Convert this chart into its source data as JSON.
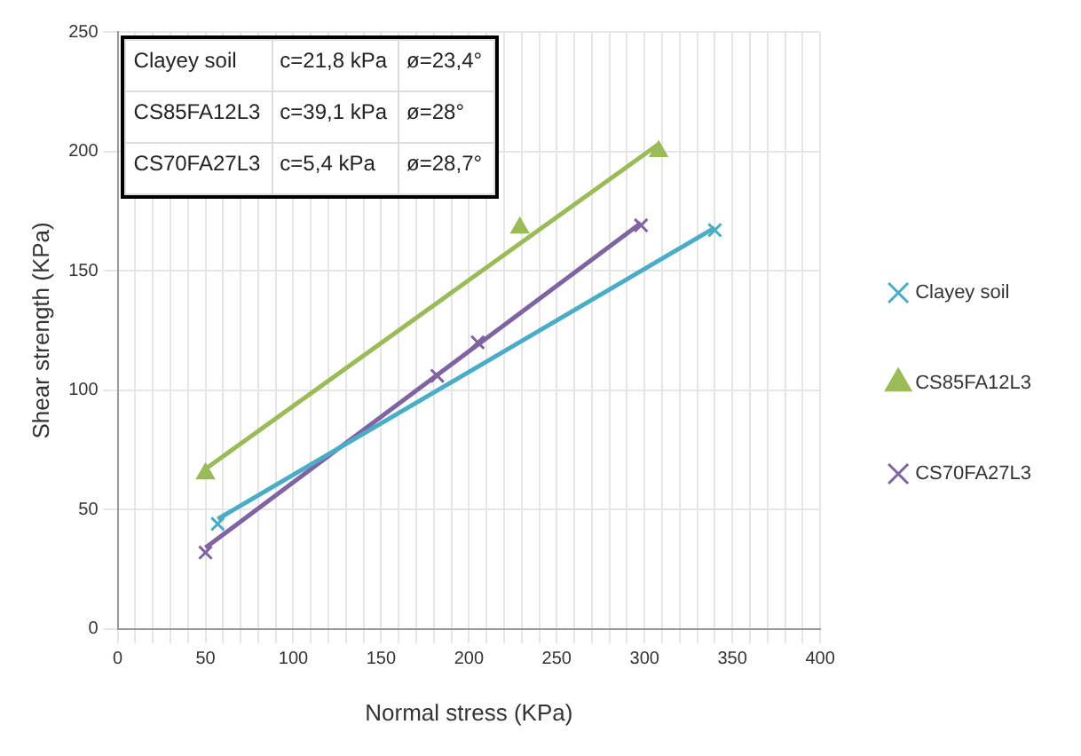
{
  "chart_data": {
    "type": "scatter",
    "xlabel": "Normal stress (KPa)",
    "ylabel": "Shear strength (KPa)",
    "series": [
      {
        "name": "Clayey soil",
        "color": "#4bacc6",
        "marker": "cross",
        "x": [
          57,
          340
        ],
        "values": [
          44,
          167
        ]
      },
      {
        "name": "CS85FA12L3",
        "color": "#9bbb59",
        "marker": "triangle",
        "x": [
          50,
          229,
          308
        ],
        "values": [
          65,
          168,
          200
        ]
      },
      {
        "name": "CS70FA27L3",
        "color": "#8064a2",
        "marker": "cross",
        "x": [
          50,
          182,
          205,
          298
        ],
        "values": [
          32,
          106,
          120,
          169
        ]
      },
      {
        "type": "line",
        "color": "#4bacc6",
        "marker": "none",
        "x": [
          57,
          340
        ],
        "values": [
          46,
          168
        ]
      },
      {
        "type": "line",
        "color": "#9bbb59",
        "marker": "none",
        "x": [
          50,
          308
        ],
        "values": [
          67,
          203
        ]
      },
      {
        "type": "line",
        "color": "#8064a2",
        "marker": "none",
        "x": [
          50,
          298
        ],
        "values": [
          34,
          170
        ]
      }
    ],
    "annotations": [
      "Clayey soil",
      "c=21,8 kPa",
      "ø=23,4°",
      "CS85FA12L3",
      "c=39,1 kPa",
      "ø=28°",
      "CS70FA27L3",
      "c=5,4 kPa",
      "ø=28,7°"
    ],
    "xlim": [
      0,
      400
    ],
    "ylim": [
      0,
      250
    ],
    "xticks": [
      0,
      {
        "value": 10,
        "label": null
      },
      {
        "value": 20,
        "label": null
      },
      {
        "value": 30,
        "label": null
      },
      {
        "value": 40,
        "label": null
      },
      50,
      {
        "value": 60,
        "label": null
      },
      {
        "value": 70,
        "label": null
      },
      {
        "value": 80,
        "label": null
      },
      {
        "value": 90,
        "label": null
      },
      100,
      {
        "value": 110,
        "label": null
      },
      {
        "value": 120,
        "label": null
      },
      {
        "value": 130,
        "label": null
      },
      {
        "value": 140,
        "label": null
      },
      150,
      {
        "value": 160,
        "label": null
      },
      {
        "value": 170,
        "label": null
      },
      {
        "value": 180,
        "label": null
      },
      {
        "value": 190,
        "label": null
      },
      200,
      {
        "value": 210,
        "label": null
      },
      {
        "value": 220,
        "label": null
      },
      {
        "value": 230,
        "label": null
      },
      {
        "value": 240,
        "label": null
      },
      250,
      {
        "value": 260,
        "label": null
      },
      {
        "value": 270,
        "label": null
      },
      {
        "value": 280,
        "label": null
      },
      {
        "value": 290,
        "label": null
      },
      300,
      {
        "value": 310,
        "label": null
      },
      {
        "value": 320,
        "label": null
      },
      {
        "value": 330,
        "label": null
      },
      {
        "value": 340,
        "label": null
      },
      350,
      {
        "value": 360,
        "label": null
      },
      {
        "value": 370,
        "label": null
      },
      {
        "value": 380,
        "label": null
      },
      {
        "value": 390,
        "label": null
      },
      400
    ],
    "yticks": [
      0,
      50,
      100,
      150,
      200,
      250
    ],
    "grid": true,
    "legend": "right"
  }
}
